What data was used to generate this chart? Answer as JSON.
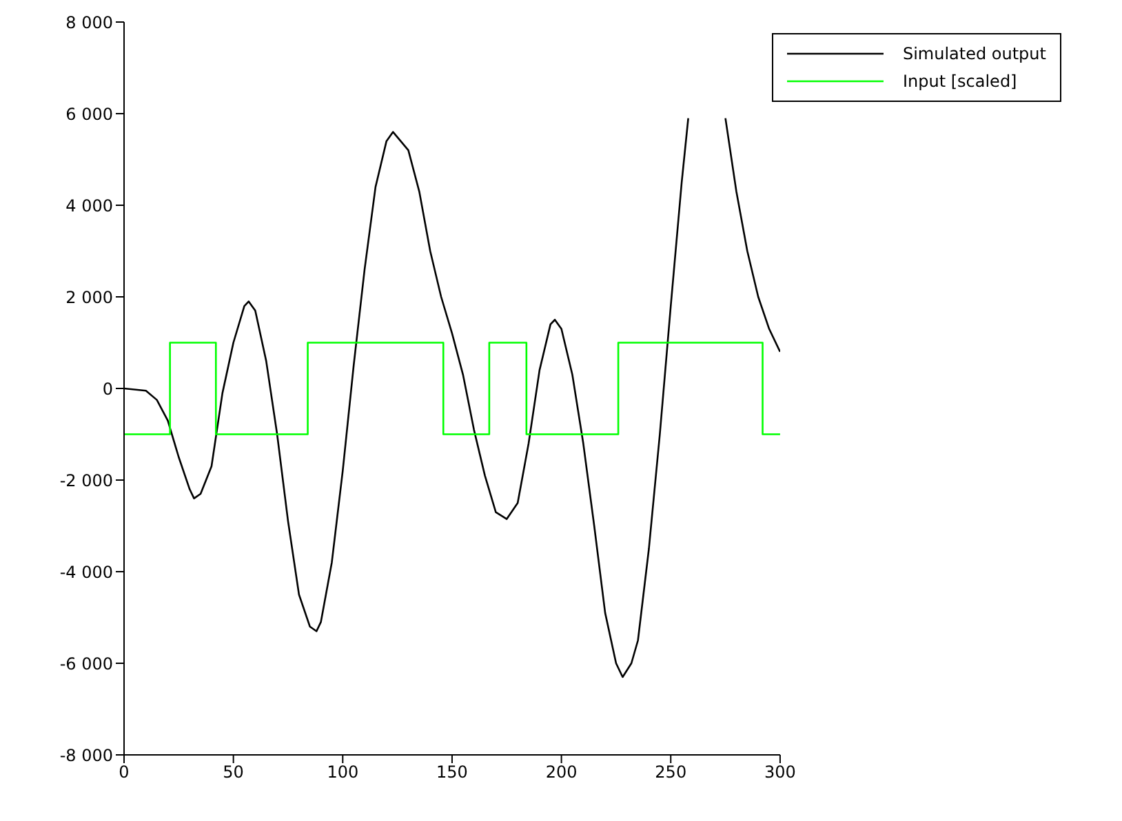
{
  "chart_data": {
    "type": "line",
    "xlim": [
      0,
      300
    ],
    "ylim": [
      -8000,
      8000
    ],
    "xticks": [
      0,
      50,
      100,
      150,
      200,
      250,
      300
    ],
    "yticks": [
      {
        "value": -8000,
        "label": "-8 000"
      },
      {
        "value": -6000,
        "label": "-6 000"
      },
      {
        "value": -4000,
        "label": "-4 000"
      },
      {
        "value": -2000,
        "label": "-2 000"
      },
      {
        "value": 0,
        "label": "0"
      },
      {
        "value": 2000,
        "label": "2 000"
      },
      {
        "value": 4000,
        "label": "4 000"
      },
      {
        "value": 6000,
        "label": "6 000"
      },
      {
        "value": 8000,
        "label": "8 000"
      }
    ],
    "grid": false,
    "legend": "top right",
    "marker": "none",
    "series": [
      {
        "name": "Simulated output",
        "color": "#000000",
        "x": [
          0,
          10,
          15,
          20,
          25,
          30,
          32,
          35,
          40,
          45,
          50,
          55,
          57,
          60,
          65,
          70,
          75,
          80,
          85,
          88,
          90,
          95,
          100,
          105,
          110,
          115,
          120,
          123,
          130,
          135,
          140,
          145,
          150,
          155,
          160,
          165,
          170,
          175,
          180,
          185,
          190,
          195,
          197,
          200,
          205,
          210,
          215,
          220,
          225,
          228,
          232,
          235,
          240,
          245,
          250,
          255,
          258,
          260,
          265,
          270,
          273,
          275,
          280,
          285,
          290,
          295,
          300
        ],
        "values": [
          0,
          -50,
          -250,
          -700,
          -1500,
          -2200,
          -2400,
          -2300,
          -1700,
          -100,
          1000,
          1800,
          1900,
          1700,
          600,
          -1000,
          -2900,
          -4500,
          -5200,
          -5300,
          -5100,
          -3800,
          -1800,
          500,
          2600,
          4400,
          5400,
          5600,
          5200,
          4300,
          3000,
          2000,
          1200,
          300,
          -900,
          -1900,
          -2700,
          -2850,
          -2500,
          -1200,
          400,
          1400,
          1500,
          1300,
          300,
          -1200,
          -3000,
          -4900,
          -6000,
          -6300,
          -6000,
          -5500,
          -3500,
          -1000,
          1800,
          4500,
          5900,
          null,
          null,
          null,
          null,
          5900,
          4300,
          3000,
          2000,
          1300,
          800
        ]
      },
      {
        "name": "Input [scaled]",
        "type": "step",
        "color": "#00ff00",
        "x": [
          0,
          21,
          42,
          84,
          146,
          167,
          184,
          226,
          292,
          300
        ],
        "values": [
          -1000,
          1000,
          -1000,
          1000,
          -1000,
          1000,
          -1000,
          1000,
          -1000,
          -1000
        ]
      }
    ]
  }
}
